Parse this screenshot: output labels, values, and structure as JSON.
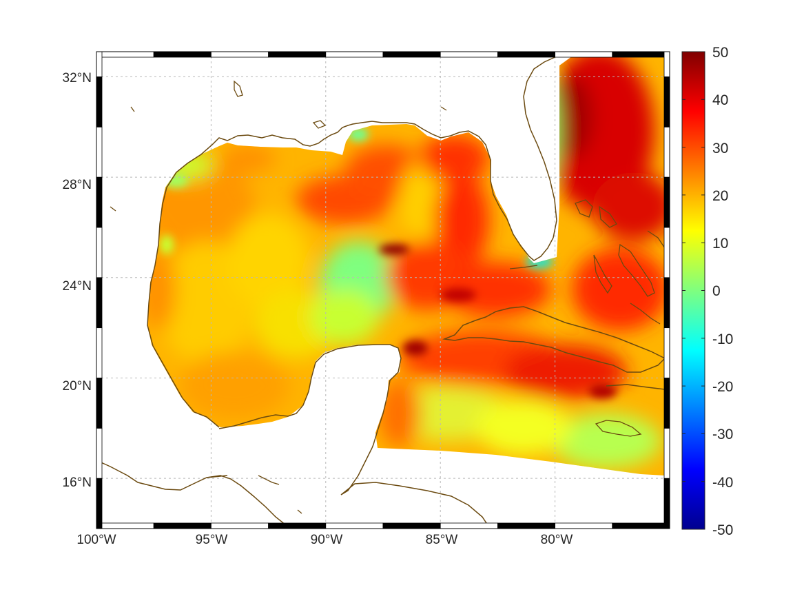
{
  "map": {
    "lon_range": [
      -100,
      -75
    ],
    "lat_range": [
      14,
      33
    ],
    "lon_ticks": [
      {
        "value": -100,
        "label": "100°W"
      },
      {
        "value": -95,
        "label": "95°W"
      },
      {
        "value": -90,
        "label": "90°W"
      },
      {
        "value": -85,
        "label": "85°W"
      },
      {
        "value": -80,
        "label": "80°W"
      }
    ],
    "lat_ticks": [
      {
        "value": 16,
        "label": "16°N"
      },
      {
        "value": 20,
        "label": "20°N"
      },
      {
        "value": 24,
        "label": "24°N"
      },
      {
        "value": 28,
        "label": "28°N"
      },
      {
        "value": 32,
        "label": "32°N"
      }
    ],
    "grid": true,
    "colors": {
      "coastline": "#6b4a10",
      "grid": "#b8b8b8",
      "land": "#ffffff"
    }
  },
  "colorbar": {
    "range": [
      -50,
      50
    ],
    "colormap": "jet",
    "ticks": [
      {
        "value": 50,
        "label": "50"
      },
      {
        "value": 40,
        "label": "40"
      },
      {
        "value": 30,
        "label": "30"
      },
      {
        "value": 20,
        "label": "20"
      },
      {
        "value": 10,
        "label": "10"
      },
      {
        "value": 0,
        "label": "0"
      },
      {
        "value": -10,
        "label": "-10"
      },
      {
        "value": -20,
        "label": "-20"
      },
      {
        "value": -30,
        "label": "-30"
      },
      {
        "value": -40,
        "label": "-40"
      },
      {
        "value": -50,
        "label": "-50"
      }
    ]
  }
}
